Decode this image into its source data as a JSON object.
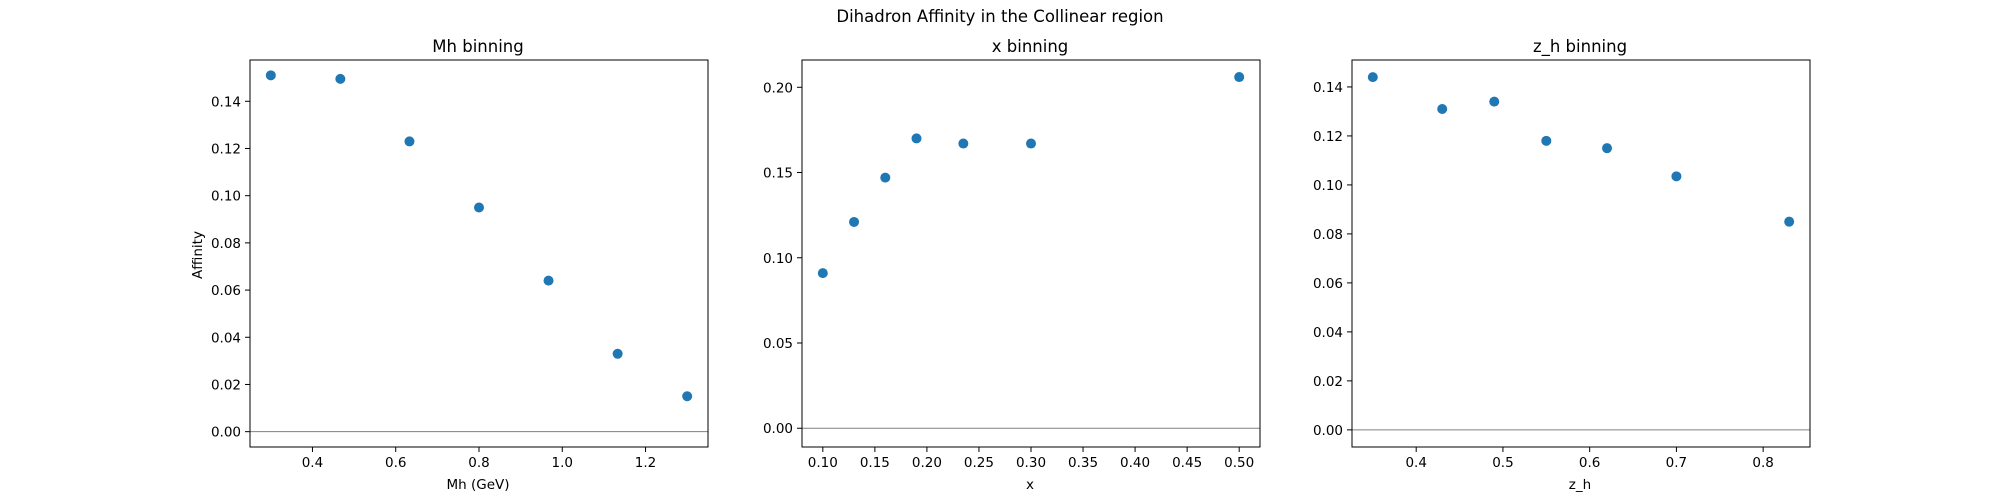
{
  "figure": {
    "suptitle": "Dihadron Affinity in the Collinear region"
  },
  "chart_data": [
    {
      "type": "scatter",
      "title": "Mh binning",
      "xlabel": "Mh (GeV)",
      "ylabel": "Affinity",
      "xlim": [
        0.25,
        1.35
      ],
      "ylim": [
        -0.0065,
        0.1575
      ],
      "xticks": [
        0.4,
        0.6,
        0.8,
        1.0,
        1.2
      ],
      "xtick_labels": [
        "0.4",
        "0.6",
        "0.8",
        "1.0",
        "1.2"
      ],
      "yticks": [
        0.0,
        0.02,
        0.04,
        0.06,
        0.08,
        0.1,
        0.12,
        0.14
      ],
      "ytick_labels": [
        "0.00",
        "0.02",
        "0.04",
        "0.06",
        "0.08",
        "0.10",
        "0.12",
        "0.14"
      ],
      "x": [
        0.3,
        0.467,
        0.633,
        0.8,
        0.967,
        1.133,
        1.3
      ],
      "y": [
        0.151,
        0.1495,
        0.123,
        0.095,
        0.064,
        0.033,
        0.015
      ],
      "hline": 0,
      "grid": false,
      "marker_color": "#1f77b4"
    },
    {
      "type": "scatter",
      "title": "x binning",
      "xlabel": "x",
      "ylabel": "",
      "xlim": [
        0.08,
        0.52
      ],
      "ylim": [
        -0.011,
        0.216
      ],
      "xticks": [
        0.1,
        0.15,
        0.2,
        0.25,
        0.3,
        0.35,
        0.4,
        0.45,
        0.5
      ],
      "xtick_labels": [
        "0.10",
        "0.15",
        "0.20",
        "0.25",
        "0.30",
        "0.35",
        "0.40",
        "0.45",
        "0.50"
      ],
      "yticks": [
        0.0,
        0.05,
        0.1,
        0.15,
        0.2
      ],
      "ytick_labels": [
        "0.00",
        "0.05",
        "0.10",
        "0.15",
        "0.20"
      ],
      "x": [
        0.1,
        0.13,
        0.16,
        0.19,
        0.235,
        0.3,
        0.5
      ],
      "y": [
        0.091,
        0.121,
        0.147,
        0.17,
        0.167,
        0.167,
        0.206
      ],
      "hline": 0,
      "grid": false,
      "marker_color": "#1f77b4"
    },
    {
      "type": "scatter",
      "title": "z_h binning",
      "xlabel": "z_h",
      "ylabel": "",
      "xlim": [
        0.326,
        0.854
      ],
      "ylim": [
        -0.007,
        0.151
      ],
      "xticks": [
        0.4,
        0.5,
        0.6,
        0.7,
        0.8
      ],
      "xtick_labels": [
        "0.4",
        "0.5",
        "0.6",
        "0.7",
        "0.8"
      ],
      "yticks": [
        0.0,
        0.02,
        0.04,
        0.06,
        0.08,
        0.1,
        0.12,
        0.14
      ],
      "ytick_labels": [
        "0.00",
        "0.02",
        "0.04",
        "0.06",
        "0.08",
        "0.10",
        "0.12",
        "0.14"
      ],
      "x": [
        0.35,
        0.43,
        0.49,
        0.55,
        0.62,
        0.7,
        0.83
      ],
      "y": [
        0.144,
        0.131,
        0.134,
        0.118,
        0.115,
        0.1035,
        0.085
      ],
      "hline": 0,
      "grid": false,
      "marker_color": "#1f77b4"
    }
  ]
}
